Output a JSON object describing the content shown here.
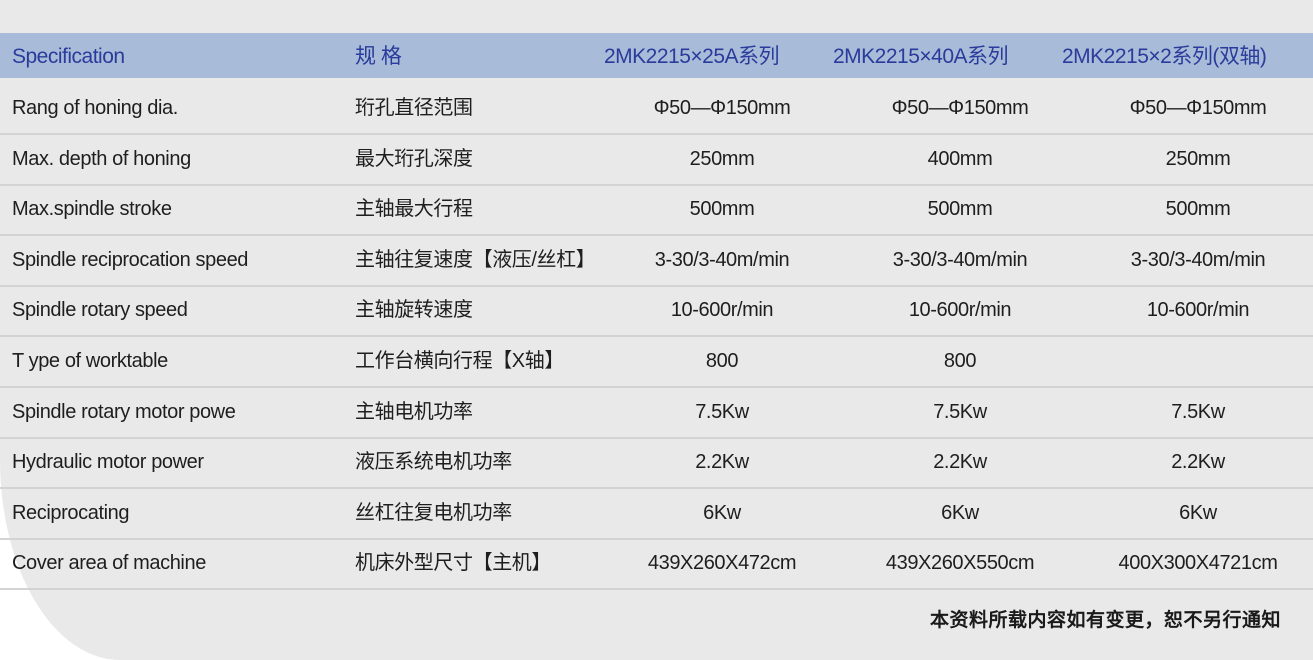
{
  "header": {
    "spec_en": "Specification",
    "spec_cn": "规 格",
    "models": [
      "2MK2215×25A系列",
      "2MK2215×40A系列",
      "2MK2215×2系列(双轴)"
    ]
  },
  "rows": [
    {
      "en": "Rang of honing dia.",
      "cn": "珩孔直径范围",
      "v": [
        "Φ50—Φ150mm",
        "Φ50—Φ150mm",
        "Φ50—Φ150mm"
      ]
    },
    {
      "en": "Max. depth of honing",
      "cn": "最大珩孔深度",
      "v": [
        "250mm",
        "400mm",
        "250mm"
      ]
    },
    {
      "en": "Max.spindle stroke",
      "cn": "主轴最大行程",
      "v": [
        "500mm",
        "500mm",
        "500mm"
      ]
    },
    {
      "en": "Spindle reciprocation speed",
      "cn": "主轴往复速度【液压/丝杠】",
      "v": [
        "3-30/3-40m/min",
        "3-30/3-40m/min",
        "3-30/3-40m/min"
      ]
    },
    {
      "en": "Spindle rotary speed",
      "cn": "主轴旋转速度",
      "v": [
        "10-600r/min",
        "10-600r/min",
        "10-600r/min"
      ]
    },
    {
      "en": "T ype of worktable",
      "cn": "工作台横向行程【X轴】",
      "v": [
        "800",
        "800",
        ""
      ]
    },
    {
      "en": "Spindle rotary motor powe",
      "cn": "主轴电机功率",
      "v": [
        "7.5Kw",
        "7.5Kw",
        "7.5Kw"
      ]
    },
    {
      "en": "Hydraulic motor power",
      "cn": "液压系统电机功率",
      "v": [
        "2.2Kw",
        "2.2Kw",
        "2.2Kw"
      ]
    },
    {
      "en": "Reciprocating",
      "cn": "丝杠往复电机功率",
      "v": [
        "6Kw",
        "6Kw",
        "6Kw"
      ]
    },
    {
      "en": "Cover area of machine",
      "cn": "机床外型尺寸【主机】",
      "v": [
        "439X260X472cm",
        "439X260X550cm",
        "400X300X4721cm"
      ]
    }
  ],
  "footnote": "本资料所载内容如有变更，恕不另行通知",
  "colors": {
    "header_bg": "#a8bcd9",
    "header_text": "#2a3b9b",
    "panel_bg": "#e9e9ea"
  }
}
